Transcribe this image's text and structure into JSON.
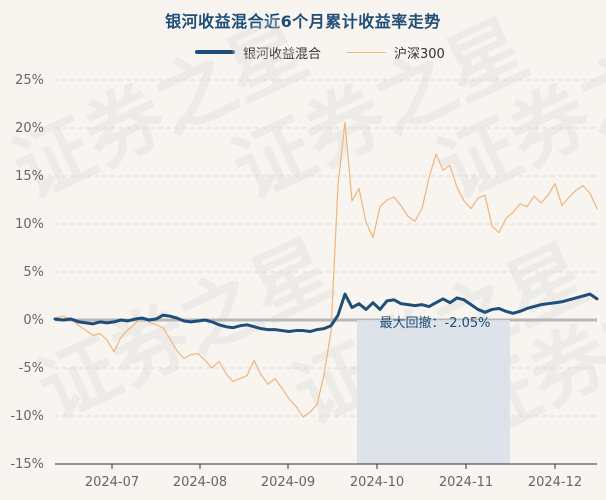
{
  "chart_data": {
    "type": "line",
    "title": "银河收益混合近6个月累计收益率走势",
    "series": [
      {
        "name": "银河收益混合",
        "color": "#1f4e79",
        "x": [
          0,
          8,
          16,
          24,
          31,
          38,
          45,
          52,
          59,
          66,
          73,
          80,
          87,
          94,
          101,
          108,
          115,
          122,
          129,
          136,
          143,
          150,
          157,
          164,
          171,
          178,
          185,
          192,
          199,
          206,
          213,
          220,
          227,
          234,
          241,
          248,
          255,
          262,
          269,
          276,
          283,
          290,
          297,
          304,
          311,
          318,
          325,
          332,
          339,
          346,
          353,
          360,
          367,
          374,
          381,
          388,
          395,
          402,
          409,
          416,
          423,
          430,
          437,
          444,
          451,
          458,
          465,
          472,
          479,
          486,
          493,
          500,
          507,
          514,
          521,
          528,
          535,
          542
        ],
        "values": [
          0.1,
          0.0,
          0.1,
          -0.2,
          -0.3,
          -0.4,
          -0.2,
          -0.3,
          -0.2,
          0.0,
          -0.1,
          0.1,
          0.2,
          0.0,
          0.1,
          0.5,
          0.4,
          0.2,
          -0.1,
          -0.2,
          -0.1,
          0.0,
          -0.2,
          -0.5,
          -0.7,
          -0.8,
          -0.6,
          -0.5,
          -0.7,
          -0.9,
          -1.0,
          -1.0,
          -1.1,
          -1.2,
          -1.1,
          -1.1,
          -1.2,
          -1.0,
          -0.9,
          -0.6,
          0.5,
          2.7,
          1.3,
          1.7,
          1.1,
          1.8,
          1.1,
          2.0,
          2.1,
          1.7,
          1.6,
          1.5,
          1.6,
          1.4,
          1.8,
          2.2,
          1.8,
          2.3,
          2.1,
          1.6,
          1.1,
          0.8,
          1.1,
          1.2,
          0.9,
          0.7,
          0.9,
          1.2,
          1.4,
          1.6,
          1.7,
          1.8,
          1.9,
          2.1,
          2.3,
          2.5,
          2.7,
          2.2
        ]
      },
      {
        "name": "沪深300",
        "color": "#f0b47d",
        "x": [
          0,
          8,
          16,
          24,
          31,
          38,
          45,
          52,
          59,
          66,
          73,
          80,
          87,
          94,
          101,
          108,
          115,
          122,
          129,
          136,
          143,
          150,
          157,
          164,
          171,
          178,
          185,
          192,
          199,
          206,
          213,
          220,
          227,
          234,
          241,
          248,
          255,
          262,
          269,
          276,
          283,
          290,
          297,
          304,
          311,
          318,
          325,
          332,
          339,
          346,
          353,
          360,
          367,
          374,
          381,
          388,
          395,
          402,
          409,
          416,
          423,
          430,
          437,
          444,
          451,
          458,
          465,
          472,
          479,
          486,
          493,
          500,
          507,
          514,
          521,
          528,
          535,
          542
        ],
        "values": [
          0.2,
          0.4,
          0.1,
          -0.6,
          -1.1,
          -1.6,
          -1.4,
          -2.1,
          -3.3,
          -1.8,
          -1.0,
          -0.4,
          0.3,
          -0.2,
          -0.5,
          -0.8,
          -2.0,
          -3.2,
          -4.0,
          -3.6,
          -3.5,
          -4.2,
          -5.0,
          -4.3,
          -5.6,
          -6.4,
          -6.1,
          -5.8,
          -4.2,
          -5.7,
          -6.7,
          -6.1,
          -7.1,
          -8.2,
          -9.0,
          -10.1,
          -9.6,
          -8.8,
          -5.7,
          -1.2,
          14.1,
          20.6,
          12.4,
          13.7,
          10.2,
          8.6,
          11.8,
          12.5,
          12.8,
          11.9,
          10.8,
          10.3,
          11.6,
          14.8,
          17.3,
          15.6,
          16.1,
          13.8,
          12.4,
          11.6,
          12.7,
          13.0,
          9.8,
          9.1,
          10.6,
          11.2,
          12.1,
          11.8,
          12.9,
          12.2,
          13.0,
          14.2,
          11.9,
          12.8,
          13.5,
          14.0,
          13.2,
          11.6
        ]
      }
    ],
    "x_ticks": [
      "2024-07",
      "2024-08",
      "2024-09",
      "2024-10",
      "2024-11",
      "2024-12"
    ],
    "y_ticks": [
      "25%",
      "20%",
      "15%",
      "10%",
      "5%",
      "0%",
      "-5%",
      "-10%",
      "-15%"
    ],
    "ylim": [
      -15,
      25
    ],
    "grid": "horizontal dashed",
    "legend_position": "top-center",
    "annotation": {
      "text": "最大回撤：-2.05%",
      "value": -2.05,
      "shade_start": "2024-10",
      "shade_end": "2024-12"
    },
    "watermark": "证券之星"
  }
}
